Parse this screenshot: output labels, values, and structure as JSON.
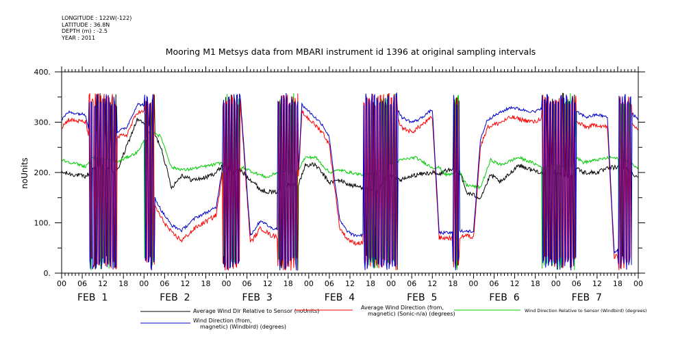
{
  "metadata": {
    "longitude": "LONGITUDE : 122W(-122)",
    "latitude": "LATITUDE : 36.8N",
    "depth": "DEPTH (m) : -2.5",
    "year": "YEAR : 2011"
  },
  "chart_data": {
    "type": "line",
    "title": "Mooring M1 Metsys data from MBARI instrument id 1396 at original sampling intervals",
    "ylabel": "noUnits",
    "xlabel": "",
    "ylim": [
      0,
      400
    ],
    "yticks": [
      0,
      100,
      200,
      300,
      400
    ],
    "ytick_labels": [
      "0.",
      "100.",
      "200.",
      "300.",
      "400."
    ],
    "x_unit": "hour",
    "x_range_hours": [
      0,
      168
    ],
    "x_tick_hours": [
      "00",
      "06",
      "12",
      "18"
    ],
    "day_labels": [
      "FEB  1",
      "FEB  2",
      "FEB  3",
      "FEB  4",
      "FEB  5",
      "FEB  6",
      "FEB  7"
    ],
    "grid": false,
    "legend_position": "bottom",
    "series": [
      {
        "name": "Average Wind Dir Relative to Sensor (noUnits)",
        "color": "#000000",
        "keypoints": [
          [
            0,
            200
          ],
          [
            7,
            192
          ],
          [
            9,
            205
          ],
          [
            12,
            215
          ],
          [
            16,
            200
          ],
          [
            22,
            305
          ],
          [
            26,
            290
          ],
          [
            29,
            250
          ],
          [
            32,
            170
          ],
          [
            35,
            195
          ],
          [
            38,
            185
          ],
          [
            42,
            190
          ],
          [
            45,
            200
          ],
          [
            47,
            215
          ],
          [
            50,
            200
          ],
          [
            52,
            205
          ],
          [
            56,
            180
          ],
          [
            58,
            165
          ],
          [
            62,
            160
          ],
          [
            66,
            175
          ],
          [
            69,
            175
          ],
          [
            71,
            215
          ],
          [
            74,
            215
          ],
          [
            78,
            180
          ],
          [
            81,
            185
          ],
          [
            84,
            175
          ],
          [
            88,
            170
          ],
          [
            92,
            160
          ],
          [
            95,
            195
          ],
          [
            99,
            185
          ],
          [
            103,
            195
          ],
          [
            108,
            200
          ],
          [
            110,
            195
          ],
          [
            112,
            205
          ],
          [
            116,
            200
          ],
          [
            118,
            160
          ],
          [
            122,
            150
          ],
          [
            125,
            195
          ],
          [
            128,
            180
          ],
          [
            133,
            215
          ],
          [
            137,
            205
          ],
          [
            140,
            200
          ],
          [
            145,
            200
          ],
          [
            148,
            190
          ],
          [
            150,
            210
          ],
          [
            152,
            200
          ],
          [
            156,
            200
          ],
          [
            160,
            210
          ],
          [
            164,
            210
          ],
          [
            168,
            190
          ]
        ]
      },
      {
        "name": "Average Wind Direction (from, magnetic) (Sonic-n/a) (degrees)",
        "color": "#ff0000",
        "keypoints": [
          [
            0,
            290
          ],
          [
            2,
            305
          ],
          [
            7,
            300
          ],
          [
            9,
            240
          ],
          [
            11,
            230
          ],
          [
            14,
            240
          ],
          [
            16,
            270
          ],
          [
            19,
            275
          ],
          [
            22,
            320
          ],
          [
            24,
            320
          ],
          [
            26,
            150
          ],
          [
            29,
            110
          ],
          [
            32,
            80
          ],
          [
            35,
            65
          ],
          [
            39,
            90
          ],
          [
            45,
            115
          ],
          [
            48,
            250
          ],
          [
            50,
            320
          ],
          [
            52,
            345
          ],
          [
            55,
            60
          ],
          [
            58,
            90
          ],
          [
            61,
            75
          ],
          [
            65,
            70
          ],
          [
            68,
            60
          ],
          [
            70,
            320
          ],
          [
            73,
            300
          ],
          [
            76,
            280
          ],
          [
            78,
            255
          ],
          [
            81,
            90
          ],
          [
            83,
            70
          ],
          [
            85,
            60
          ],
          [
            88,
            60
          ],
          [
            92,
            55
          ],
          [
            95,
            55
          ],
          [
            97,
            320
          ],
          [
            99,
            290
          ],
          [
            102,
            280
          ],
          [
            104,
            290
          ],
          [
            106,
            300
          ],
          [
            108,
            310
          ],
          [
            110,
            70
          ],
          [
            114,
            70
          ],
          [
            118,
            75
          ],
          [
            120,
            70
          ],
          [
            122,
            250
          ],
          [
            124,
            290
          ],
          [
            128,
            300
          ],
          [
            131,
            310
          ],
          [
            134,
            305
          ],
          [
            138,
            300
          ],
          [
            140,
            310
          ],
          [
            142,
            50
          ],
          [
            145,
            60
          ],
          [
            148,
            40
          ],
          [
            150,
            300
          ],
          [
            153,
            290
          ],
          [
            156,
            295
          ],
          [
            159,
            290
          ],
          [
            161,
            30
          ],
          [
            163,
            40
          ],
          [
            165,
            310
          ],
          [
            168,
            285
          ]
        ]
      },
      {
        "name": "Wind Direction Relative to Sensor (Windbird) (degrees)",
        "color": "#00cc00",
        "keypoints": [
          [
            0,
            225
          ],
          [
            7,
            212
          ],
          [
            9,
            230
          ],
          [
            12,
            230
          ],
          [
            16,
            220
          ],
          [
            22,
            240
          ],
          [
            26,
            285
          ],
          [
            29,
            270
          ],
          [
            32,
            210
          ],
          [
            36,
            205
          ],
          [
            40,
            210
          ],
          [
            44,
            215
          ],
          [
            47,
            220
          ],
          [
            50,
            200
          ],
          [
            53,
            210
          ],
          [
            56,
            200
          ],
          [
            60,
            190
          ],
          [
            64,
            205
          ],
          [
            68,
            195
          ],
          [
            71,
            230
          ],
          [
            74,
            230
          ],
          [
            78,
            200
          ],
          [
            81,
            205
          ],
          [
            84,
            200
          ],
          [
            88,
            195
          ],
          [
            92,
            200
          ],
          [
            95,
            215
          ],
          [
            99,
            225
          ],
          [
            103,
            230
          ],
          [
            108,
            210
          ],
          [
            110,
            210
          ],
          [
            112,
            195
          ],
          [
            116,
            200
          ],
          [
            118,
            175
          ],
          [
            122,
            170
          ],
          [
            125,
            225
          ],
          [
            128,
            215
          ],
          [
            133,
            230
          ],
          [
            137,
            220
          ],
          [
            140,
            210
          ],
          [
            145,
            215
          ],
          [
            148,
            205
          ],
          [
            150,
            230
          ],
          [
            152,
            220
          ],
          [
            156,
            225
          ],
          [
            160,
            230
          ],
          [
            164,
            225
          ],
          [
            168,
            210
          ]
        ]
      },
      {
        "name": "Wind Direction (from, magnetic) (Windbird) (degrees)",
        "color": "#0000cc",
        "keypoints": [
          [
            0,
            305
          ],
          [
            2,
            320
          ],
          [
            7,
            315
          ],
          [
            9,
            250
          ],
          [
            11,
            240
          ],
          [
            14,
            250
          ],
          [
            16,
            280
          ],
          [
            19,
            290
          ],
          [
            22,
            335
          ],
          [
            24,
            335
          ],
          [
            26,
            165
          ],
          [
            29,
            125
          ],
          [
            32,
            95
          ],
          [
            35,
            85
          ],
          [
            39,
            110
          ],
          [
            45,
            130
          ],
          [
            48,
            260
          ],
          [
            50,
            335
          ],
          [
            52,
            355
          ],
          [
            55,
            75
          ],
          [
            58,
            105
          ],
          [
            61,
            90
          ],
          [
            65,
            85
          ],
          [
            68,
            75
          ],
          [
            70,
            335
          ],
          [
            73,
            315
          ],
          [
            76,
            295
          ],
          [
            78,
            270
          ],
          [
            81,
            105
          ],
          [
            83,
            85
          ],
          [
            85,
            75
          ],
          [
            88,
            75
          ],
          [
            92,
            70
          ],
          [
            95,
            70
          ],
          [
            97,
            340
          ],
          [
            99,
            310
          ],
          [
            102,
            300
          ],
          [
            104,
            305
          ],
          [
            106,
            315
          ],
          [
            108,
            325
          ],
          [
            110,
            80
          ],
          [
            114,
            80
          ],
          [
            118,
            85
          ],
          [
            120,
            80
          ],
          [
            122,
            265
          ],
          [
            124,
            305
          ],
          [
            128,
            320
          ],
          [
            131,
            330
          ],
          [
            134,
            325
          ],
          [
            138,
            320
          ],
          [
            140,
            330
          ],
          [
            142,
            60
          ],
          [
            145,
            75
          ],
          [
            148,
            50
          ],
          [
            150,
            320
          ],
          [
            153,
            310
          ],
          [
            156,
            315
          ],
          [
            159,
            310
          ],
          [
            161,
            40
          ],
          [
            163,
            55
          ],
          [
            165,
            325
          ],
          [
            168,
            305
          ]
        ]
      }
    ],
    "switching_periods_hours": [
      [
        8,
        16
      ],
      [
        24,
        27
      ],
      [
        47,
        52
      ],
      [
        63,
        69
      ],
      [
        88,
        98
      ],
      [
        114,
        116
      ],
      [
        140,
        150
      ],
      [
        162,
        166
      ]
    ]
  }
}
